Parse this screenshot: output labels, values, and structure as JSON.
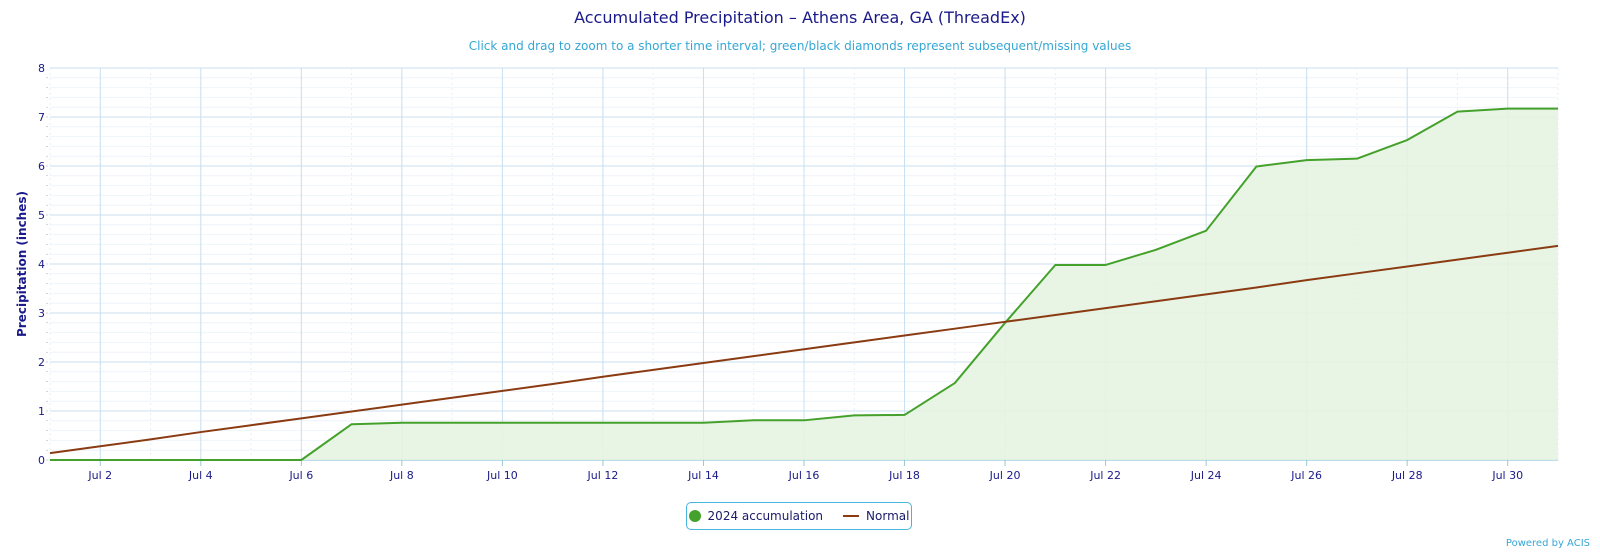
{
  "title": "Accumulated Precipitation – Athens Area, GA (ThreadEx)",
  "subtitle": "Click and drag to zoom to a shorter time interval; green/black diamonds represent subsequent/missing values",
  "credits": "Powered by ACIS",
  "colors": {
    "accumulation": "#44a12b",
    "accumulation_fill": "#e6f3e1",
    "normal": "#8a3b12",
    "grid": "#c8dff0",
    "axis_text": "#1a1a8a"
  },
  "chart_data": {
    "type": "area",
    "title": "Accumulated Precipitation – Athens Area, GA (ThreadEx)",
    "subtitle": "Click and drag to zoom to a shorter time interval; green/black diamonds represent subsequent/missing values",
    "ylabel": "Precipitation (inches)",
    "xlabel": "",
    "x_days": [
      1,
      2,
      3,
      4,
      5,
      6,
      7,
      8,
      9,
      10,
      11,
      12,
      13,
      14,
      15,
      16,
      17,
      18,
      19,
      20,
      21,
      22,
      23,
      24,
      25,
      26,
      27,
      28,
      29,
      30,
      31
    ],
    "xlim": [
      1,
      31
    ],
    "ylim": [
      0,
      8
    ],
    "x_tick_labels": [
      "Jul 2",
      "Jul 4",
      "Jul 6",
      "Jul 8",
      "Jul 10",
      "Jul 12",
      "Jul 14",
      "Jul 16",
      "Jul 18",
      "Jul 20",
      "Jul 22",
      "Jul 24",
      "Jul 26",
      "Jul 28",
      "Jul 30"
    ],
    "x_tick_days": [
      2,
      4,
      6,
      8,
      10,
      12,
      14,
      16,
      18,
      20,
      22,
      24,
      26,
      28,
      30
    ],
    "y_ticks": [
      0,
      1,
      2,
      3,
      4,
      5,
      6,
      7,
      8
    ],
    "grid": true,
    "legend_position": "bottom-center",
    "series": [
      {
        "name": "2024 accumulation",
        "type": "area",
        "values": [
          0,
          0,
          0,
          0,
          0,
          0,
          0.73,
          0.76,
          0.76,
          0.76,
          0.76,
          0.76,
          0.76,
          0.76,
          0.81,
          0.81,
          0.91,
          0.92,
          1.57,
          2.8,
          3.98,
          3.98,
          4.29,
          4.68,
          5.99,
          6.12,
          6.15,
          6.53,
          7.11,
          7.17,
          7.17
        ]
      },
      {
        "name": "Normal",
        "type": "line",
        "values": [
          0.14,
          0.28,
          0.42,
          0.57,
          0.71,
          0.85,
          0.99,
          1.13,
          1.27,
          1.41,
          1.55,
          1.7,
          1.84,
          1.98,
          2.12,
          2.26,
          2.4,
          2.54,
          2.68,
          2.82,
          2.96,
          3.1,
          3.24,
          3.38,
          3.52,
          3.67,
          3.81,
          3.95,
          4.09,
          4.23,
          4.37
        ]
      }
    ]
  }
}
